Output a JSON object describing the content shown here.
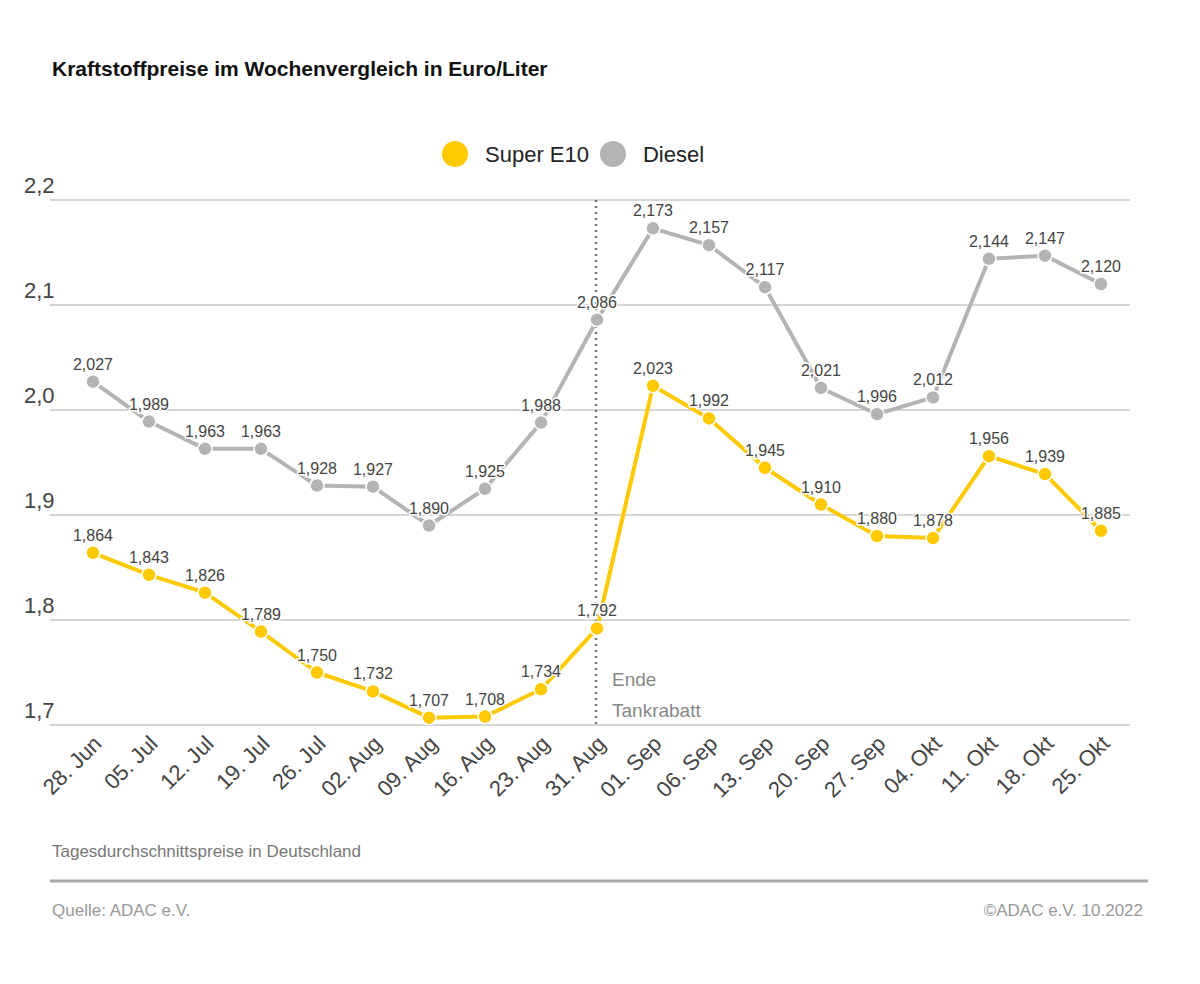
{
  "chart_data": {
    "type": "line",
    "title": "Kraftstoffpreise im Wochenvergleich in Euro/Liter",
    "categories": [
      "28. Jun",
      "05. Jul",
      "12. Jul",
      "19. Jul",
      "26. Jul",
      "02. Aug",
      "09. Aug",
      "16. Aug",
      "23. Aug",
      "31. Aug",
      "01. Sep",
      "06. Sep",
      "13. Sep",
      "20. Sep",
      "27. Sep",
      "04. Okt",
      "11. Okt",
      "18. Okt",
      "25. Okt"
    ],
    "series": [
      {
        "name": "Super E10",
        "color": "#fdc900",
        "marker": "circle",
        "values": [
          1.864,
          1.843,
          1.826,
          1.789,
          1.75,
          1.732,
          1.707,
          1.708,
          1.734,
          1.792,
          2.023,
          1.992,
          1.945,
          1.91,
          1.88,
          1.878,
          1.956,
          1.939,
          1.885
        ],
        "value_labels": [
          "1,864",
          "1,843",
          "1,826",
          "1,789",
          "1,750",
          "1,732",
          "1,707",
          "1,708",
          "1,734",
          "1,792",
          "2,023",
          "1,992",
          "1,945",
          "1,910",
          "1,880",
          "1,878",
          "1,956",
          "1,939",
          "1,885"
        ]
      },
      {
        "name": "Diesel",
        "color": "#b4b4b4",
        "marker": "circle",
        "values": [
          2.027,
          1.989,
          1.963,
          1.963,
          1.928,
          1.927,
          1.89,
          1.925,
          1.988,
          2.086,
          2.173,
          2.157,
          2.117,
          2.021,
          1.996,
          2.012,
          2.144,
          2.147,
          2.12
        ],
        "value_labels": [
          "2,027",
          "1,989",
          "1,963",
          "1,963",
          "1,928",
          "1,927",
          "1,890",
          "1,925",
          "1,988",
          "2,086",
          "2,173",
          "2,157",
          "2,117",
          "2,021",
          "1,996",
          "2,012",
          "2,144",
          "2,147",
          "2,120"
        ]
      }
    ],
    "ylim": [
      1.7,
      2.2
    ],
    "yticks": [
      {
        "value": 1.7,
        "label": "1,7"
      },
      {
        "value": 1.8,
        "label": "1,8"
      },
      {
        "value": 1.9,
        "label": "1,9"
      },
      {
        "value": 2.0,
        "label": "2,0"
      },
      {
        "value": 2.1,
        "label": "2,1"
      },
      {
        "value": 2.2,
        "label": "2,2"
      }
    ],
    "grid": true,
    "legend": "top",
    "data_labels": true,
    "annotations": [
      {
        "at": "31. Aug",
        "text": [
          "Ende",
          "Tankrabatt"
        ],
        "line_style": "dotted"
      }
    ],
    "note": "Tagesdurchschnittspreise in Deutschland",
    "source": "Quelle: ADAC e.V.",
    "copyright": "©ADAC e.V.  10.2022"
  }
}
